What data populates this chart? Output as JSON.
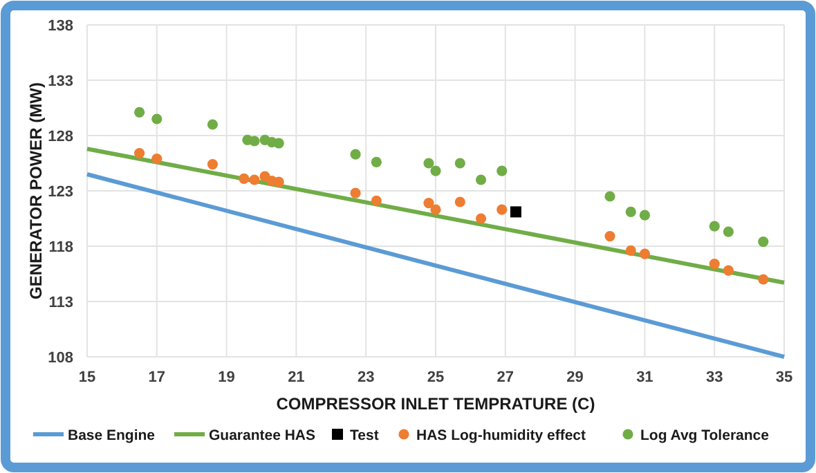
{
  "chart_data": {
    "type": "scatter",
    "xlabel": "COMPRESSOR INLET TEMPRATURE (C)",
    "ylabel": "GENERATOR POWER (MW)",
    "xlim": [
      15,
      35
    ],
    "xticks": [
      15,
      17,
      19,
      21,
      23,
      25,
      27,
      29,
      31,
      33,
      35
    ],
    "ylim": [
      108,
      138
    ],
    "yticks": [
      108,
      113,
      118,
      123,
      128,
      133,
      138
    ],
    "grid": true,
    "legend": "bottom",
    "series": [
      {
        "name": "Base Engine",
        "type": "line",
        "color": "#5b9bd5",
        "marker": "none",
        "x": [
          15,
          35
        ],
        "values": [
          124.5,
          108
        ]
      },
      {
        "name": "Guarantee HAS",
        "type": "line",
        "color": "#70ad47",
        "marker": "none",
        "x": [
          15,
          35
        ],
        "values": [
          126.8,
          114.7
        ]
      },
      {
        "name": "Test",
        "type": "scatter",
        "color": "#000000",
        "marker": "square",
        "x": [
          27.3
        ],
        "values": [
          121.1
        ]
      },
      {
        "name": "HAS Log-humidity effect",
        "type": "scatter",
        "color": "#ed7d31",
        "marker": "circle",
        "x": [
          16.5,
          17,
          18.6,
          19.5,
          19.8,
          20.1,
          20.3,
          20.5,
          22.7,
          23.3,
          24.8,
          25,
          25.7,
          26.3,
          26.9,
          30,
          30.6,
          31,
          33,
          33.4,
          34.4
        ],
        "values": [
          126.4,
          125.9,
          125.4,
          124.1,
          124,
          124.3,
          123.9,
          123.8,
          122.8,
          122.1,
          121.9,
          121.3,
          122,
          120.5,
          121.3,
          118.9,
          117.6,
          117.3,
          116.4,
          115.8,
          115
        ]
      },
      {
        "name": "Log Avg Tolerance",
        "type": "scatter",
        "color": "#70ad47",
        "marker": "circle",
        "x": [
          16.5,
          17,
          18.6,
          19.6,
          19.8,
          20.1,
          20.3,
          20.5,
          22.7,
          23.3,
          24.8,
          25,
          25.7,
          26.3,
          26.9,
          30,
          30.6,
          31,
          33,
          33.4,
          34.4
        ],
        "values": [
          130.1,
          129.5,
          129,
          127.6,
          127.5,
          127.6,
          127.4,
          127.3,
          126.3,
          125.6,
          125.5,
          124.8,
          125.5,
          124,
          124.8,
          122.5,
          121.1,
          120.8,
          119.8,
          119.3,
          118.4
        ]
      }
    ]
  }
}
